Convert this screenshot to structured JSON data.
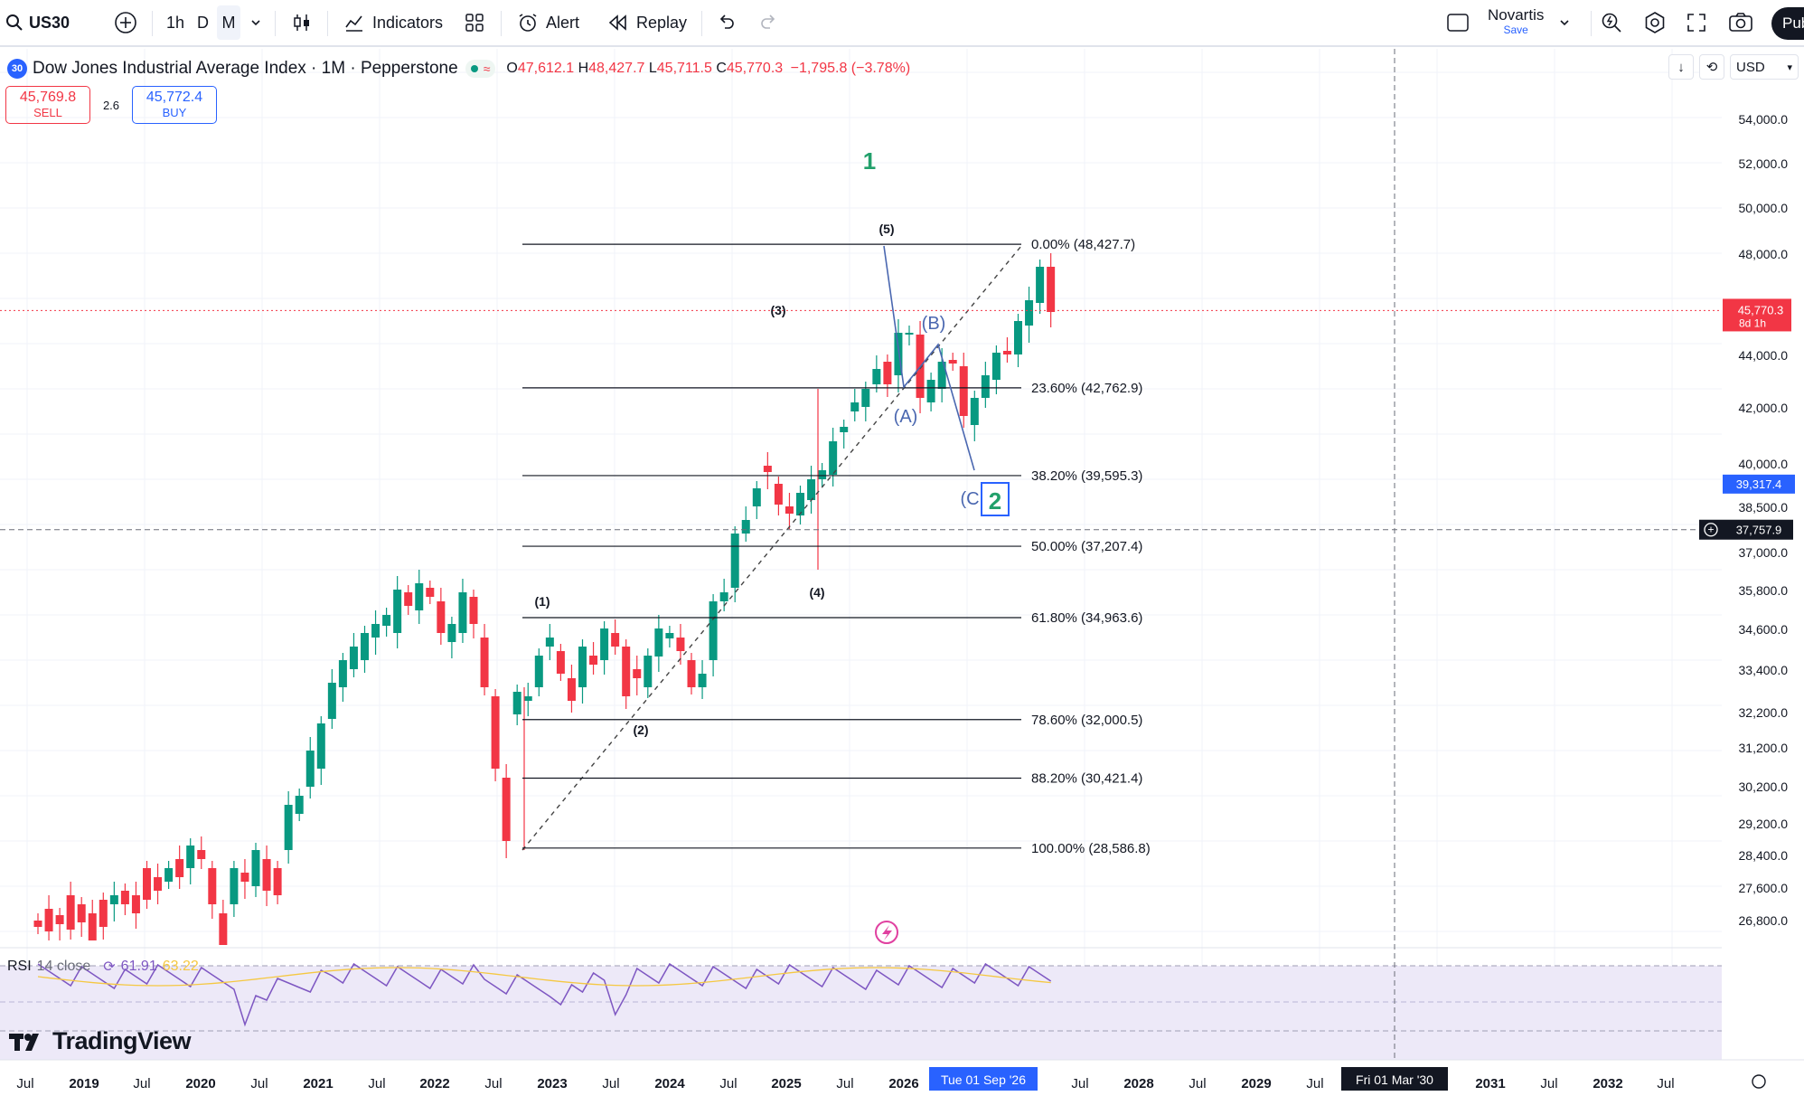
{
  "toolbar": {
    "symbol": "US30",
    "intervals": [
      "1h",
      "D",
      "M"
    ],
    "active_interval": "M",
    "indicators_label": "Indicators",
    "alert_label": "Alert",
    "replay_label": "Replay",
    "layout_name": "Novartis",
    "layout_save": "Save",
    "publish_label": "Pub"
  },
  "legend": {
    "badge": "30",
    "title": "Dow Jones Industrial Average Index · 1M · Pepperstone",
    "o_key": "O",
    "o": "47,612.1",
    "h_key": "H",
    "h": "48,427.7",
    "l_key": "L",
    "l": "45,711.5",
    "c_key": "C",
    "c": "45,770.3",
    "change": "−1,795.8 (−3.78%)"
  },
  "trade": {
    "sell_price": "45,769.8",
    "sell_label": "SELL",
    "spread": "2.6",
    "buy_price": "45,772.4",
    "buy_label": "BUY"
  },
  "currency": "USD",
  "price_axis": {
    "ticks": [
      "54,000.0",
      "52,000.0",
      "50,000.0",
      "48,000.0",
      "44,000.0",
      "42,000.0",
      "40,000.0",
      "38,500.0",
      "37,000.0",
      "35,800.0",
      "34,600.0",
      "33,400.0",
      "32,200.0",
      "31,200.0",
      "30,200.0",
      "29,200.0",
      "28,400.0",
      "27,600.0",
      "26,800.0"
    ],
    "last_price": "45,770.3",
    "last_countdown": "8d 1h",
    "line_label": "39,317.4",
    "crosshair_price": "37,757.9"
  },
  "time_axis": {
    "ticks": [
      "Jul",
      "2019",
      "Jul",
      "2020",
      "Jul",
      "2021",
      "Jul",
      "2022",
      "Jul",
      "2023",
      "Jul",
      "2024",
      "Jul",
      "2025",
      "Jul",
      "2026",
      "Jul",
      "2028",
      "Jul",
      "2029",
      "Jul",
      "2031",
      "Jul",
      "2032",
      "Jul"
    ],
    "highlight1": "Tue 01 Sep '26",
    "highlight2": "Fri 01 Mar '30"
  },
  "fib": [
    {
      "label": "0.00% (48,427.7)",
      "level": 48427.7
    },
    {
      "label": "23.60% (42,762.9)",
      "level": 42762.9
    },
    {
      "label": "38.20% (39,595.3)",
      "level": 39595.3
    },
    {
      "label": "50.00% (37,207.4)",
      "level": 37207.4
    },
    {
      "label": "61.80% (34,963.6)",
      "level": 34963.6
    },
    {
      "label": "78.60% (32,000.5)",
      "level": 32000.5
    },
    {
      "label": "88.20% (30,421.4)",
      "level": 30421.4
    },
    {
      "label": "100.00% (28,586.8)",
      "level": 28586.8
    }
  ],
  "waves": {
    "w1": "1",
    "w2": "2",
    "i": "(1)",
    "ii": "(2)",
    "iii": "(3)",
    "iv": "(4)",
    "v": "(5)",
    "A": "(A)",
    "B": "(B)",
    "C": "(C"
  },
  "rsi": {
    "label": "RSI",
    "params": "14 close",
    "value": "61.91",
    "ma_value": "63.22",
    "upper": "80.00",
    "lower": "40.00"
  },
  "brand": "TradingView",
  "colors": {
    "up": "#089981",
    "down": "#f23645",
    "accent": "#2962ff",
    "wave": "#4a67b0",
    "wave_green": "#22a06b",
    "rsi": "#7e57c2",
    "rsi_ma": "#f5c842"
  }
}
